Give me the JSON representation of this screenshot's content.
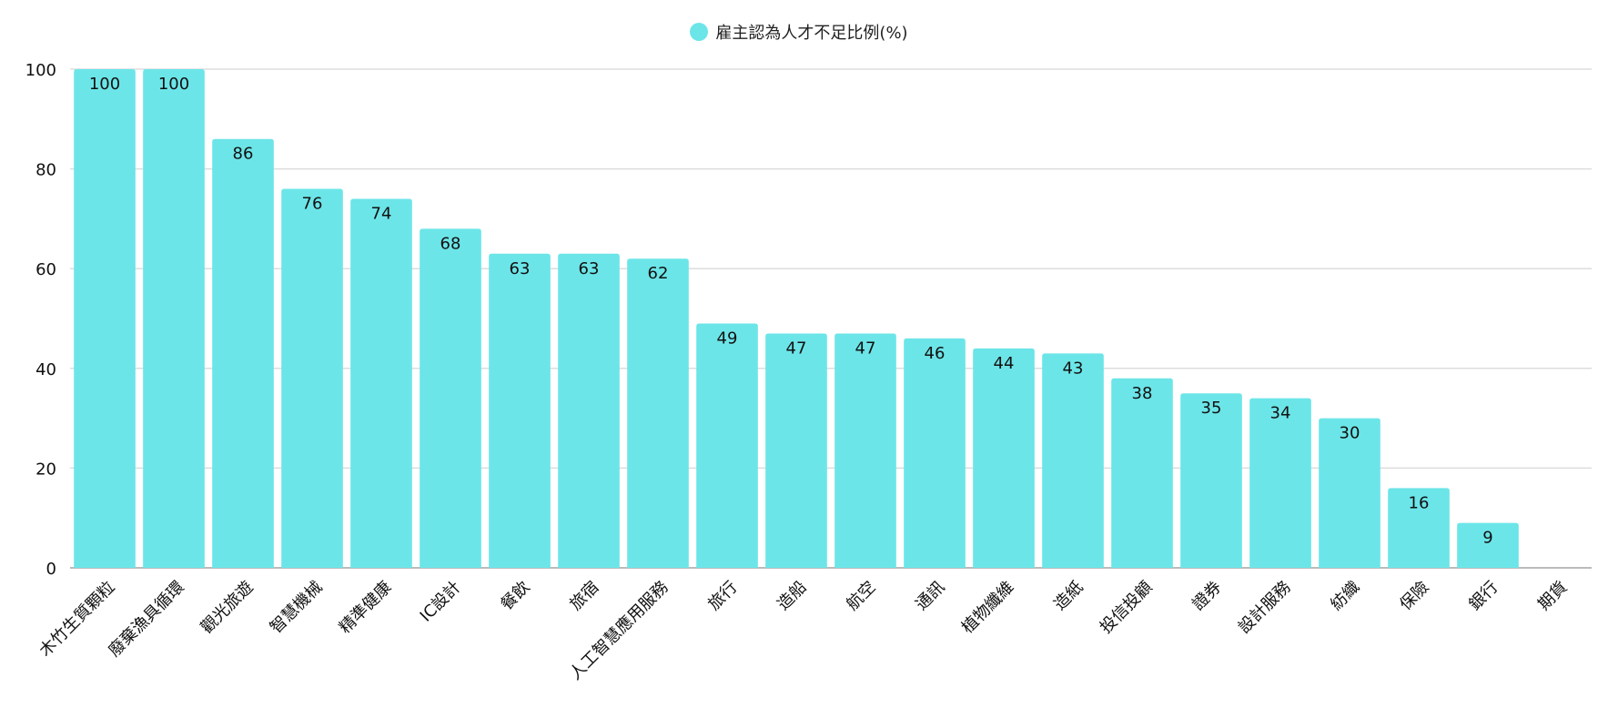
{
  "chart_data": {
    "type": "bar",
    "title": "",
    "xlabel": "",
    "ylabel": "",
    "ylim": [
      0,
      100
    ],
    "yticks": [
      0,
      20,
      40,
      60,
      80,
      100
    ],
    "grid": true,
    "legend_position": "top",
    "bar_color": "#6ce5e8",
    "categories": [
      "木竹生質顆粒",
      "廢棄漁具循環",
      "觀光旅遊",
      "智慧機械",
      "精準健康",
      "IC設計",
      "餐飲",
      "旅宿",
      "人工智慧應用服務",
      "旅行",
      "造船",
      "航空",
      "通訊",
      "植物纖維",
      "造紙",
      "投信投顧",
      "證券",
      "設計服務",
      "紡織",
      "保險",
      "銀行",
      "期貨"
    ],
    "series": [
      {
        "name": "雇主認為人才不足比例(%)",
        "values": [
          100,
          100,
          86,
          76,
          74,
          68,
          63,
          63,
          62,
          49,
          47,
          47,
          46,
          44,
          43,
          38,
          35,
          34,
          30,
          16,
          9,
          null
        ]
      }
    ]
  }
}
